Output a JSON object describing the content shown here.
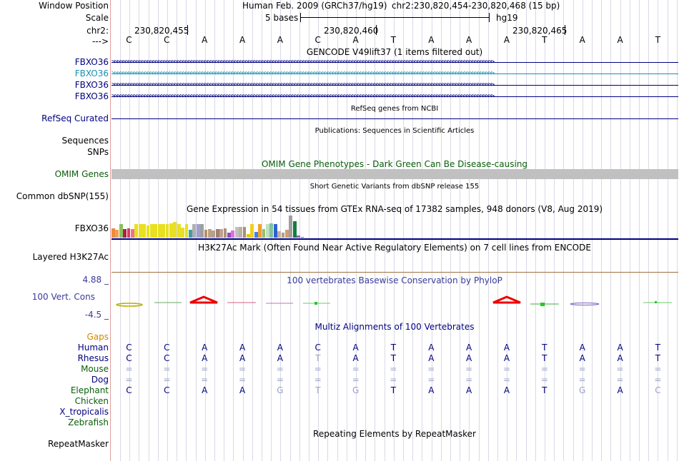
{
  "header": {
    "window_position_label": "Window Position",
    "scale_label": "Scale",
    "chr_label": "chr2:",
    "strand_label": "--->",
    "assembly": "Human Feb. 2009 (GRCh37/hg19)",
    "position": "chr2:230,820,454-230,820,468 (15 bp)",
    "scale_text": "5 bases",
    "db": "hg19",
    "coords": [
      "230,820,455",
      "230,820,460",
      "230,820,465"
    ]
  },
  "reference_bases": [
    "C",
    "C",
    "A",
    "A",
    "A",
    "C",
    "A",
    "T",
    "A",
    "A",
    "A",
    "T",
    "A",
    "A",
    "T"
  ],
  "tracks": {
    "gencode": {
      "title": "GENCODE V49lift37 (1 items filtered out)",
      "genes": [
        "FBXO36",
        "FBXO36",
        "FBXO36",
        "FBXO36"
      ]
    },
    "refseq": {
      "title": "RefSeq genes from NCBI",
      "label": "RefSeq Curated"
    },
    "publications": {
      "title": "Publications: Sequences in Scientific Articles",
      "labels": [
        "Sequences",
        "SNPs"
      ]
    },
    "omim": {
      "title": "OMIM Gene Phenotypes - Dark Green Can Be Disease-causing",
      "label": "OMIM Genes"
    },
    "dbsnp": {
      "title": "Short Genetic Variants from dbSNP release 155",
      "label": "Common dbSNP(155)"
    },
    "gtex": {
      "title": "Gene Expression in 54 tissues from GTEx RNA-seq of 17382 samples, 948 donors (V8, Aug 2019)",
      "label": "FBXO36",
      "bars": [
        {
          "v": 13,
          "c": "#f08a3c"
        },
        {
          "v": 11,
          "c": "#f0a050"
        },
        {
          "v": 19,
          "c": "#8ac060"
        },
        {
          "v": 12,
          "c": "#b02040"
        },
        {
          "v": 13,
          "c": "#d04060"
        },
        {
          "v": 12,
          "c": "#f07090"
        },
        {
          "v": 19,
          "c": "#e8e020"
        },
        {
          "v": 19,
          "c": "#e8e020"
        },
        {
          "v": 19,
          "c": "#e8e020"
        },
        {
          "v": 17,
          "c": "#e8e020"
        },
        {
          "v": 19,
          "c": "#e8e020"
        },
        {
          "v": 19,
          "c": "#e8e020"
        },
        {
          "v": 19,
          "c": "#e8e020"
        },
        {
          "v": 19,
          "c": "#e8e020"
        },
        {
          "v": 19,
          "c": "#e8e020"
        },
        {
          "v": 20,
          "c": "#e8e020"
        },
        {
          "v": 22,
          "c": "#e8e020"
        },
        {
          "v": 19,
          "c": "#e8e020"
        },
        {
          "v": 14,
          "c": "#e8e020"
        },
        {
          "v": 19,
          "c": "#e8e020"
        },
        {
          "v": 11,
          "c": "#40a0a0"
        },
        {
          "v": 19,
          "c": "#b0b0b0"
        },
        {
          "v": 19,
          "c": "#a0a0d0"
        },
        {
          "v": 19,
          "c": "#a0a0a0"
        },
        {
          "v": 11,
          "c": "#b09070"
        },
        {
          "v": 12,
          "c": "#c0a080"
        },
        {
          "v": 10,
          "c": "#b0a090"
        },
        {
          "v": 12,
          "c": "#a08070"
        },
        {
          "v": 12,
          "c": "#c0a090"
        },
        {
          "v": 13,
          "c": "#b09080"
        },
        {
          "v": 7,
          "c": "#9050c0"
        },
        {
          "v": 10,
          "c": "#e070e0"
        },
        {
          "v": 15,
          "c": "#c0c0c0"
        },
        {
          "v": 15,
          "c": "#c0b0a0"
        },
        {
          "v": 15,
          "c": "#a09080"
        },
        {
          "v": 5,
          "c": "#e0d000"
        },
        {
          "v": 19,
          "c": "#f0d020"
        },
        {
          "v": 8,
          "c": "#4080f0"
        },
        {
          "v": 19,
          "c": "#f0a030"
        },
        {
          "v": 12,
          "c": "#9ac060"
        },
        {
          "v": 19,
          "c": "#c0e0c0"
        },
        {
          "v": 20,
          "c": "#80c0a0"
        },
        {
          "v": 19,
          "c": "#3060d0"
        },
        {
          "v": 9,
          "c": "#c0b0a0"
        },
        {
          "v": 7,
          "c": "#b0a080"
        },
        {
          "v": 11,
          "c": "#d0a070"
        },
        {
          "v": 31,
          "c": "#a0a0a0"
        },
        {
          "v": 23,
          "c": "#108040"
        },
        {
          "v": 3,
          "c": "#a060c0"
        },
        {
          "v": 1,
          "c": "#7060a0"
        }
      ]
    },
    "h3k27ac": {
      "title": "H3K27Ac Mark (Often Found Near Active Regulatory Elements) on 7 cell lines from ENCODE",
      "label": "Layered H3K27Ac"
    },
    "phylop": {
      "title": "100 vertebrates Basewise Conservation by PhyloP",
      "label": "100 Vert. Cons",
      "max": "4.88 _",
      "min": "-4.5 _"
    },
    "multiz": {
      "title": "Multiz Alignments of 100 Vertebrates",
      "gaps_label": "Gaps",
      "species": [
        {
          "name": "Human",
          "cls": "navy",
          "bases": [
            "C",
            "C",
            "A",
            "A",
            "A",
            "C",
            "A",
            "T",
            "A",
            "A",
            "A",
            "T",
            "A",
            "A",
            "T"
          ],
          "gray": []
        },
        {
          "name": "Rhesus",
          "cls": "navy",
          "bases": [
            "C",
            "C",
            "A",
            "A",
            "A",
            "T",
            "A",
            "T",
            "A",
            "A",
            "A",
            "T",
            "A",
            "A",
            "T"
          ],
          "gray": [
            5
          ]
        },
        {
          "name": "Mouse",
          "cls": "green",
          "bases": [
            "=",
            "=",
            "=",
            "=",
            "=",
            "=",
            "=",
            "=",
            "=",
            "=",
            "=",
            "=",
            "=",
            "=",
            "="
          ],
          "gray": [
            0,
            1,
            2,
            3,
            4,
            5,
            6,
            7,
            8,
            9,
            10,
            11,
            12,
            13,
            14
          ]
        },
        {
          "name": "Dog",
          "cls": "navy",
          "bases": [
            "=",
            "=",
            "=",
            "=",
            "=",
            "=",
            "=",
            "=",
            "=",
            "=",
            "=",
            "=",
            "=",
            "=",
            "="
          ],
          "gray": [
            0,
            1,
            2,
            3,
            4,
            5,
            6,
            7,
            8,
            9,
            10,
            11,
            12,
            13,
            14
          ]
        },
        {
          "name": "Elephant",
          "cls": "green",
          "bases": [
            "C",
            "C",
            "A",
            "A",
            "G",
            "T",
            "G",
            "T",
            "A",
            "A",
            "A",
            "T",
            "G",
            "A",
            "C"
          ],
          "gray": [
            4,
            5,
            6,
            12,
            14
          ]
        },
        {
          "name": "Chicken",
          "cls": "green",
          "bases": [],
          "gray": []
        },
        {
          "name": "X_tropicalis",
          "cls": "navy",
          "bases": [],
          "gray": []
        },
        {
          "name": "Zebrafish",
          "cls": "green",
          "bases": [],
          "gray": []
        }
      ]
    },
    "repeatmasker": {
      "title": "Repeating Elements by RepeatMasker",
      "label": "RepeatMasker"
    }
  },
  "colors": {
    "navy": "#000080",
    "teal": "#1a8fb0",
    "green": "#0a5e0a",
    "orange": "#d08600",
    "omim_bar": "#c0c0c0"
  }
}
